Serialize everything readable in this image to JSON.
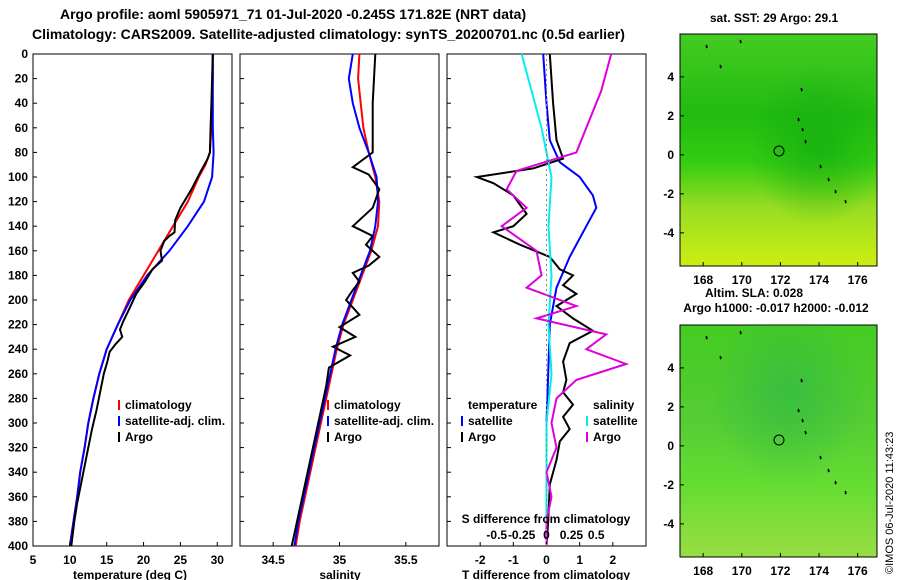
{
  "header": {
    "title1": "Argo profile: aoml 5905971_71 01-Jul-2020 -0.245S 171.82E (NRT data)",
    "title2": "Climatology: CARS2009. Satellite-adjusted climatology: synTS_20200701.nc (0.5d earlier)"
  },
  "watermark": "©IMOS 06-Jul-2020 11:43:23",
  "colors": {
    "climatology": "#ff0000",
    "satellite": "#0000ff",
    "argo": "#000000",
    "salinity_diff": "#dd00dd",
    "salinity_sat": "#00eeee"
  },
  "chart_data": [
    {
      "type": "line",
      "xlabel": "temperature (deg C)",
      "ylabel": "",
      "xlim": [
        5,
        32
      ],
      "ylim": [
        400,
        0
      ],
      "xticks": [
        5,
        10,
        15,
        20,
        25,
        30
      ],
      "yticks": [
        0,
        20,
        40,
        60,
        80,
        100,
        120,
        140,
        160,
        180,
        200,
        220,
        240,
        260,
        280,
        300,
        320,
        340,
        360,
        380,
        400
      ],
      "legend": [
        "climatology",
        "satellite-adj. clim.",
        "Argo"
      ],
      "legend_position": "lower-right",
      "series": [
        {
          "name": "climatology",
          "color": "#ff0000",
          "points": [
            [
              29.4,
              0
            ],
            [
              29.4,
              20
            ],
            [
              29.3,
              40
            ],
            [
              29.2,
              60
            ],
            [
              29,
              80
            ],
            [
              28.4,
              90
            ],
            [
              27.5,
              100
            ],
            [
              26,
              120
            ],
            [
              24,
              140
            ],
            [
              22,
              160
            ],
            [
              20,
              180
            ],
            [
              18,
              200
            ],
            [
              16.5,
              220
            ],
            [
              15,
              240
            ],
            [
              14,
              260
            ],
            [
              13.2,
              280
            ],
            [
              12.5,
              300
            ],
            [
              12,
              320
            ],
            [
              11.4,
              340
            ],
            [
              11,
              360
            ],
            [
              10.5,
              380
            ],
            [
              10,
              400
            ]
          ]
        },
        {
          "name": "satellite-adj. clim.",
          "color": "#0000ff",
          "points": [
            [
              29.4,
              0
            ],
            [
              29.4,
              20
            ],
            [
              29.4,
              40
            ],
            [
              29.4,
              60
            ],
            [
              29.5,
              80
            ],
            [
              29.3,
              100
            ],
            [
              28.2,
              120
            ],
            [
              26,
              140
            ],
            [
              23.5,
              160
            ],
            [
              20.5,
              180
            ],
            [
              18.2,
              200
            ],
            [
              16.5,
              220
            ],
            [
              15,
              240
            ],
            [
              14,
              260
            ],
            [
              13.2,
              280
            ],
            [
              12.5,
              300
            ],
            [
              12,
              320
            ],
            [
              11.4,
              340
            ],
            [
              11,
              360
            ],
            [
              10.5,
              380
            ],
            [
              10,
              400
            ]
          ]
        },
        {
          "name": "Argo",
          "color": "#000000",
          "points": [
            [
              29.4,
              0
            ],
            [
              29.3,
              20
            ],
            [
              29.2,
              40
            ],
            [
              29.1,
              60
            ],
            [
              29,
              80
            ],
            [
              28.7,
              85
            ],
            [
              27.8,
              95
            ],
            [
              26.5,
              110
            ],
            [
              25,
              125
            ],
            [
              24.3,
              135
            ],
            [
              24.2,
              145
            ],
            [
              23.5,
              148
            ],
            [
              22.8,
              152
            ],
            [
              22.3,
              160
            ],
            [
              22.5,
              168
            ],
            [
              21.2,
              175
            ],
            [
              20.2,
              185
            ],
            [
              19,
              195
            ],
            [
              18,
              208
            ],
            [
              17.2,
              218
            ],
            [
              16.8,
              224
            ],
            [
              17.1,
              230
            ],
            [
              16.2,
              236
            ],
            [
              15.4,
              242
            ],
            [
              15.1,
              250
            ],
            [
              14.6,
              260
            ],
            [
              14.1,
              275
            ],
            [
              13.6,
              290
            ],
            [
              13,
              305
            ],
            [
              12.5,
              320
            ],
            [
              12,
              335
            ],
            [
              11.5,
              350
            ],
            [
              11,
              365
            ],
            [
              10.6,
              380
            ],
            [
              10.2,
              400
            ]
          ]
        }
      ]
    },
    {
      "type": "line",
      "xlabel": "salinity",
      "xlim": [
        34.25,
        35.75
      ],
      "ylim": [
        400,
        0
      ],
      "xticks": [
        34.5,
        35,
        35.5
      ],
      "xticklabels": [
        "34.5",
        "35",
        "35.5"
      ],
      "legend": [
        "climatology",
        "satellite-adj. clim.",
        "Argo"
      ],
      "legend_position": "lower-right",
      "series": [
        {
          "name": "climatology",
          "color": "#ff0000",
          "points": [
            [
              35.15,
              0
            ],
            [
              35.14,
              20
            ],
            [
              35.16,
              40
            ],
            [
              35.18,
              60
            ],
            [
              35.22,
              80
            ],
            [
              35.27,
              100
            ],
            [
              35.3,
              120
            ],
            [
              35.29,
              140
            ],
            [
              35.24,
              160
            ],
            [
              35.17,
              180
            ],
            [
              35.1,
              200
            ],
            [
              35.03,
              220
            ],
            [
              34.98,
              240
            ],
            [
              34.94,
              260
            ],
            [
              34.9,
              280
            ],
            [
              34.86,
              300
            ],
            [
              34.82,
              320
            ],
            [
              34.78,
              340
            ],
            [
              34.74,
              360
            ],
            [
              34.7,
              380
            ],
            [
              34.67,
              400
            ]
          ]
        },
        {
          "name": "satellite-adj. clim.",
          "color": "#0000ff",
          "points": [
            [
              35.1,
              0
            ],
            [
              35.07,
              20
            ],
            [
              35.1,
              40
            ],
            [
              35.15,
              60
            ],
            [
              35.22,
              80
            ],
            [
              35.28,
              100
            ],
            [
              35.29,
              120
            ],
            [
              35.27,
              140
            ],
            [
              35.23,
              160
            ],
            [
              35.16,
              180
            ],
            [
              35.09,
              200
            ],
            [
              35.02,
              220
            ],
            [
              34.97,
              240
            ],
            [
              34.93,
              260
            ],
            [
              34.89,
              280
            ],
            [
              34.85,
              300
            ],
            [
              34.81,
              320
            ],
            [
              34.77,
              340
            ],
            [
              34.73,
              360
            ],
            [
              34.69,
              380
            ],
            [
              34.66,
              400
            ]
          ]
        },
        {
          "name": "Argo",
          "color": "#000000",
          "points": [
            [
              35.27,
              0
            ],
            [
              35.26,
              20
            ],
            [
              35.25,
              40
            ],
            [
              35.25,
              60
            ],
            [
              35.25,
              80
            ],
            [
              35.1,
              92
            ],
            [
              35.22,
              98
            ],
            [
              35.3,
              110
            ],
            [
              35.25,
              125
            ],
            [
              35.1,
              140
            ],
            [
              35.25,
              148
            ],
            [
              35.2,
              155
            ],
            [
              35.3,
              165
            ],
            [
              35.22,
              172
            ],
            [
              35.1,
              178
            ],
            [
              35.15,
              185
            ],
            [
              35.1,
              192
            ],
            [
              35.05,
              200
            ],
            [
              35.15,
              212
            ],
            [
              35.0,
              222
            ],
            [
              35.12,
              230
            ],
            [
              34.95,
              238
            ],
            [
              35.08,
              245
            ],
            [
              34.92,
              255
            ],
            [
              34.9,
              270
            ],
            [
              34.86,
              290
            ],
            [
              34.82,
              310
            ],
            [
              34.78,
              330
            ],
            [
              34.74,
              350
            ],
            [
              34.7,
              370
            ],
            [
              34.66,
              390
            ],
            [
              34.64,
              400
            ]
          ]
        }
      ]
    },
    {
      "type": "line",
      "xlabel": "T difference from climatology",
      "top_axis_label": "S difference from climatology",
      "xlim": [
        -3,
        3
      ],
      "ylim": [
        400,
        0
      ],
      "xticks": [
        -2,
        -1,
        0,
        1,
        2
      ],
      "top_ticks": [
        -0.5,
        -0.25,
        0,
        0.25,
        0.5
      ],
      "legend_left": [
        "temperature",
        "satellite",
        "Argo"
      ],
      "legend_right": [
        "salinity",
        "satellite",
        "Argo"
      ],
      "legend_position": "lower-center",
      "series": [
        {
          "name": "temperature satellite",
          "color": "#0000ff",
          "points": [
            [
              -0.1,
              0
            ],
            [
              0,
              40
            ],
            [
              0.1,
              70
            ],
            [
              0.4,
              88
            ],
            [
              1.0,
              100
            ],
            [
              1.4,
              115
            ],
            [
              1.5,
              125
            ],
            [
              1.2,
              140
            ],
            [
              0.7,
              165
            ],
            [
              0.3,
              190
            ],
            [
              0.1,
              220
            ],
            [
              0.05,
              260
            ],
            [
              0,
              300
            ],
            [
              0,
              340
            ],
            [
              0,
              400
            ]
          ]
        },
        {
          "name": "temperature Argo",
          "color": "#000000",
          "points": [
            [
              0.1,
              0
            ],
            [
              0.2,
              40
            ],
            [
              0.3,
              70
            ],
            [
              0.5,
              85
            ],
            [
              -0.4,
              93
            ],
            [
              -2.1,
              100
            ],
            [
              -1.6,
              105
            ],
            [
              -1,
              115
            ],
            [
              -0.6,
              130
            ],
            [
              -1.0,
              140
            ],
            [
              -1.6,
              145
            ],
            [
              -0.8,
              155
            ],
            [
              0.1,
              165
            ],
            [
              0.4,
              175
            ],
            [
              0.8,
              180
            ],
            [
              0.5,
              188
            ],
            [
              0.9,
              195
            ],
            [
              0.3,
              205
            ],
            [
              0.8,
              215
            ],
            [
              1.4,
              225
            ],
            [
              0.7,
              235
            ],
            [
              0.5,
              250
            ],
            [
              0.6,
              265
            ],
            [
              0.5,
              275
            ],
            [
              0.8,
              285
            ],
            [
              0.5,
              295
            ],
            [
              0.7,
              305
            ],
            [
              0.4,
              315
            ],
            [
              0.3,
              330
            ],
            [
              0.1,
              350
            ],
            [
              0.05,
              380
            ],
            [
              0,
              400
            ]
          ]
        },
        {
          "name": "salinity satellite",
          "color": "#00eeee",
          "points": [
            [
              -0.25,
              0
            ],
            [
              -0.15,
              30
            ],
            [
              -0.05,
              60
            ],
            [
              0.05,
              100
            ],
            [
              0.02,
              140
            ],
            [
              0.05,
              180
            ],
            [
              0.02,
              220
            ],
            [
              0.05,
              260
            ],
            [
              0,
              300
            ],
            [
              0,
              340
            ],
            [
              0,
              400
            ]
          ]
        },
        {
          "name": "salinity Argo",
          "color": "#dd00dd",
          "points": [
            [
              0.65,
              0
            ],
            [
              0.55,
              30
            ],
            [
              0.4,
              60
            ],
            [
              0.3,
              80
            ],
            [
              -0.3,
              95
            ],
            [
              -0.4,
              110
            ],
            [
              -0.2,
              125
            ],
            [
              -0.45,
              140
            ],
            [
              -0.1,
              160
            ],
            [
              -0.05,
              180
            ],
            [
              -0.2,
              190
            ],
            [
              0.3,
              205
            ],
            [
              -0.1,
              215
            ],
            [
              0.6,
              228
            ],
            [
              0.4,
              240
            ],
            [
              0.8,
              252
            ],
            [
              0.3,
              265
            ],
            [
              0.1,
              280
            ],
            [
              0.05,
              300
            ],
            [
              0.1,
              320
            ],
            [
              0,
              340
            ],
            [
              0.05,
              360
            ],
            [
              0,
              380
            ],
            [
              0,
              400
            ]
          ]
        }
      ]
    }
  ],
  "maps": [
    {
      "title": "sat. SST: 29 Argo: 29.1",
      "xticks": [
        "168",
        "170",
        "172",
        "174",
        "176"
      ],
      "yticks": [
        "4",
        "2",
        "0",
        "-2",
        "-4"
      ]
    },
    {
      "title1": "Altim. SLA: 0.028",
      "title2": "Argo h1000: -0.017 h2000: -0.012",
      "xticks": [
        "168",
        "170",
        "172",
        "174",
        "176"
      ],
      "yticks": [
        "4",
        "2",
        "0",
        "-2",
        "-4"
      ]
    }
  ]
}
